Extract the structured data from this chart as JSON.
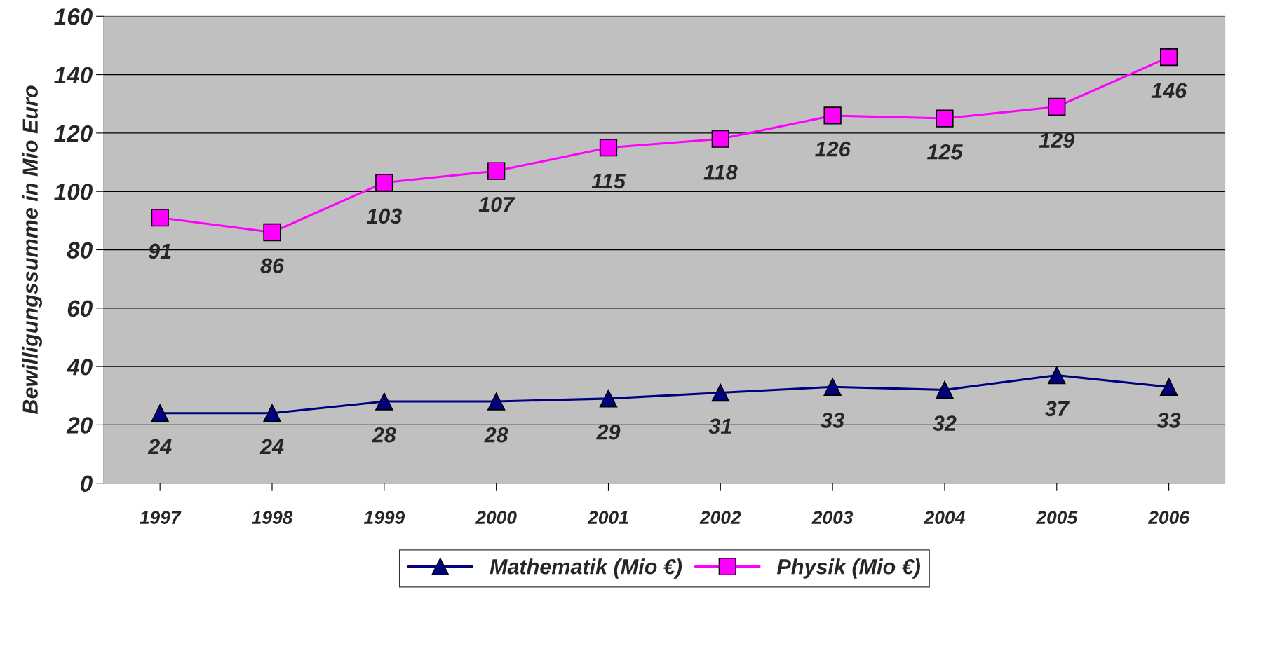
{
  "chart_data": {
    "type": "line",
    "ylabel": "Bewilligungssumme in Mio Euro",
    "categories": [
      "1997",
      "1998",
      "1999",
      "2000",
      "2001",
      "2002",
      "2003",
      "2004",
      "2005",
      "2006"
    ],
    "series": [
      {
        "name": "Mathematik (Mio €)",
        "color": "#000080",
        "marker": "triangle",
        "values": [
          24,
          24,
          28,
          28,
          29,
          31,
          33,
          32,
          37,
          33
        ]
      },
      {
        "name": "Physik (Mio €)",
        "color": "#ff00ff",
        "marker": "square",
        "values": [
          91,
          86,
          103,
          107,
          115,
          118,
          126,
          125,
          129,
          146
        ]
      }
    ],
    "ylim": [
      0,
      160
    ],
    "yticks": [
      0,
      20,
      40,
      60,
      80,
      100,
      120,
      140,
      160
    ],
    "grid": "y",
    "legend": "bottom",
    "data_labels": true,
    "line_style": "solid"
  }
}
